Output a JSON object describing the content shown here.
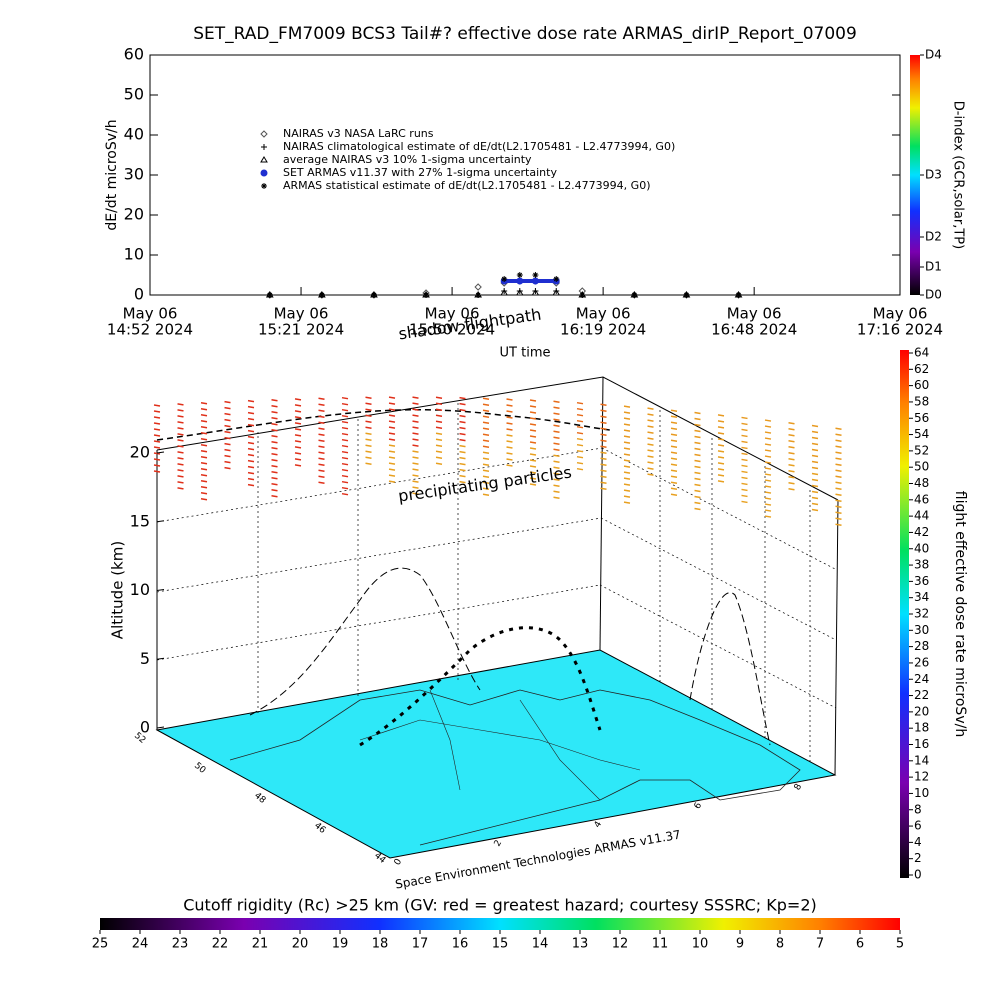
{
  "chart_data": [
    {
      "type": "scatter",
      "title": "SET_RAD_FM7009  BCS3 Tail#? effective dose rate ARMAS_dirIP_Report_07009",
      "ylabel": "dE/dt microSv/h",
      "xlabel": "UT time",
      "xlim": [
        "2024-05-06T14:52",
        "2024-05-06T17:16"
      ],
      "xticks": [
        {
          "value": "2024-05-06T14:52",
          "label": [
            "May 06",
            "14:52 2024"
          ]
        },
        {
          "value": "2024-05-06T15:21",
          "label": [
            "May 06",
            "15:21 2024"
          ]
        },
        {
          "value": "2024-05-06T15:50",
          "label": [
            "May 06",
            "15:50 2024"
          ]
        },
        {
          "value": "2024-05-06T16:19",
          "label": [
            "May 06",
            "16:19 2024"
          ]
        },
        {
          "value": "2024-05-06T16:48",
          "label": [
            "May 06",
            "16:48 2024"
          ]
        },
        {
          "value": "2024-05-06T17:16",
          "label": [
            "May 06",
            "17:16 2024"
          ]
        }
      ],
      "ylim": [
        0,
        60
      ],
      "yticks": [
        0,
        10,
        20,
        30,
        40,
        50,
        60
      ],
      "y2label": "D-index (GCR,solar,TP)",
      "y2lim": [
        0,
        60
      ],
      "y2ticks": [
        {
          "value": 0,
          "label": "D0"
        },
        {
          "value": 7,
          "label": "D1"
        },
        {
          "value": 14.5,
          "label": "D2"
        },
        {
          "value": 30,
          "label": "D3"
        },
        {
          "value": 60,
          "label": "D4"
        }
      ],
      "x": [
        "2024-05-06T15:15",
        "2024-05-06T15:25",
        "2024-05-06T15:35",
        "2024-05-06T15:45",
        "2024-05-06T15:55",
        "2024-05-06T16:00",
        "2024-05-06T16:03",
        "2024-05-06T16:06",
        "2024-05-06T16:10",
        "2024-05-06T16:15",
        "2024-05-06T16:25",
        "2024-05-06T16:35",
        "2024-05-06T16:45"
      ],
      "series": [
        {
          "name": "NAIRAS v3 NASA LaRC runs",
          "marker": "diamond",
          "color": "#555555",
          "values": [
            0,
            0,
            0,
            0.5,
            2,
            3,
            3.5,
            3.5,
            3,
            1,
            0,
            0,
            0
          ]
        },
        {
          "name": "NAIRAS climatological estimate of dE/dt(L2.1705481 - L2.4773994, G0)",
          "marker": "plus",
          "color": "#000000",
          "values": [
            0,
            0,
            0,
            0,
            0,
            1,
            1,
            1,
            1,
            0,
            0,
            0,
            0
          ]
        },
        {
          "name": "average NAIRAS v3 10% 1-sigma uncertainty",
          "marker": "triangle",
          "color": "#000000",
          "values": [
            0,
            0,
            0,
            0,
            0,
            0.5,
            0.5,
            0.5,
            0.5,
            0,
            0,
            0,
            0
          ]
        },
        {
          "name": "SET ARMAS v11.37 with 27% 1-sigma uncertainty",
          "marker": "circle",
          "color": "#1f2fd0",
          "values": [
            null,
            null,
            null,
            null,
            null,
            3.5,
            3.5,
            3.5,
            3.5,
            null,
            null,
            null,
            null
          ]
        },
        {
          "name": "ARMAS statistical estimate of dE/dt(L2.1705481 - L2.4773994, G0)",
          "marker": "asterisk",
          "color": "#000000",
          "values": [
            0,
            0,
            0,
            0,
            0,
            4,
            5,
            5,
            4,
            0,
            0,
            0,
            0
          ]
        }
      ]
    },
    {
      "type": "surface3d",
      "zlabel": "Altitude (km)",
      "zlim": [
        0,
        20
      ],
      "zticks": [
        0,
        5,
        10,
        15,
        20
      ],
      "yticks": [
        52,
        50,
        48,
        46,
        44
      ],
      "xticks": [
        0,
        2,
        4,
        6,
        8
      ],
      "annotations": [
        "shadow flightpath",
        "precipitating particles"
      ],
      "credit": "Space Environment Technologies ARMAS v11.37",
      "colorbar": {
        "label": "flight effective dose rate microSv/h",
        "lim": [
          0,
          64
        ],
        "ticks": [
          0,
          2,
          4,
          6,
          8,
          10,
          12,
          14,
          16,
          18,
          20,
          22,
          24,
          26,
          28,
          30,
          32,
          34,
          36,
          38,
          40,
          42,
          44,
          46,
          48,
          50,
          52,
          54,
          56,
          58,
          60,
          62,
          64
        ]
      }
    },
    {
      "type": "colorbar",
      "title": "Cutoff rigidity (Rc) >25 km (GV: red = greatest hazard; courtesy SSSRC; Kp=2)",
      "lim": [
        25,
        5
      ],
      "ticks": [
        25,
        24,
        23,
        22,
        21,
        20,
        19,
        18,
        17,
        16,
        15,
        14,
        13,
        12,
        11,
        10,
        9,
        8,
        7,
        6,
        5
      ]
    }
  ]
}
